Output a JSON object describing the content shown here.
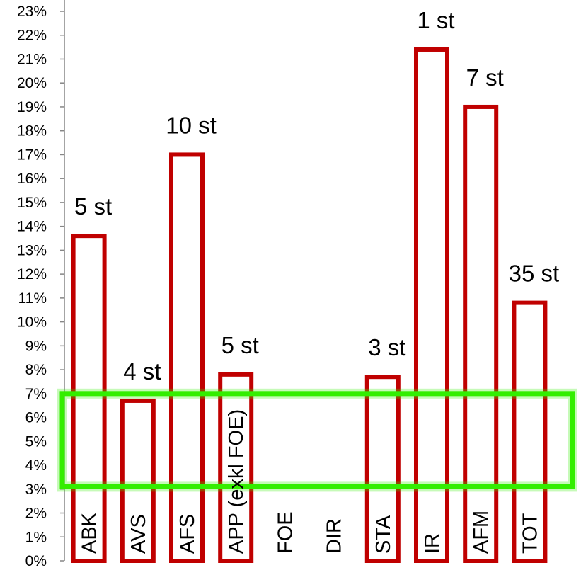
{
  "chart_data": {
    "type": "bar",
    "categories": [
      "ABK",
      "AVS",
      "AFS",
      "APP (exkl FOE)",
      "FOE",
      "DIR",
      "STA",
      "IR",
      "AFM",
      "TOT"
    ],
    "values": [
      13.6,
      6.7,
      17.0,
      7.8,
      null,
      null,
      7.7,
      21.4,
      19.0,
      10.8
    ],
    "data_labels": [
      "5 st",
      "4 st",
      "10 st",
      "5 st",
      "",
      "",
      "3 st",
      "1 st",
      "7 st",
      "35 st"
    ],
    "yticks": [
      "0%",
      "1%",
      "2%",
      "3%",
      "4%",
      "5%",
      "6%",
      "7%",
      "8%",
      "9%",
      "10%",
      "11%",
      "12%",
      "13%",
      "14%",
      "15%",
      "16%",
      "17%",
      "18%",
      "19%",
      "20%",
      "21%",
      "22%",
      "23%"
    ],
    "ylim": [
      0,
      23
    ],
    "grid": false,
    "legend": "none",
    "bar_style": "outline",
    "bar_color": "#c00000",
    "highlight_band": {
      "from": 3.1,
      "to": 7.0,
      "color": "#33ee00"
    },
    "title": "",
    "xlabel": "",
    "ylabel": ""
  }
}
